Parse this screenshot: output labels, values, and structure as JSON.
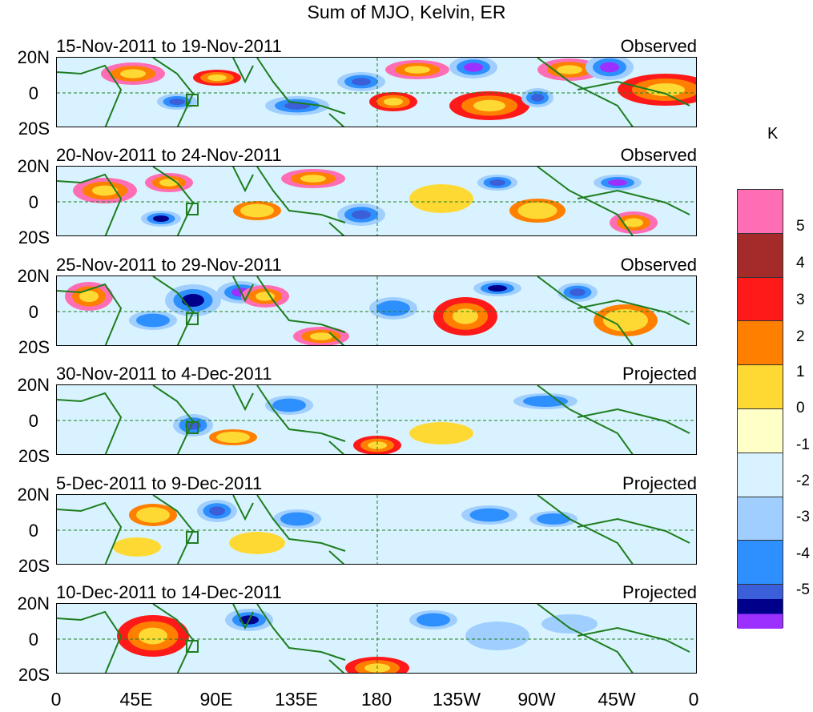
{
  "title": "Sum of MJO, Kelvin, ER",
  "lat_labels": [
    "20N",
    "0",
    "20S"
  ],
  "lon_labels": [
    "0",
    "45E",
    "90E",
    "135E",
    "180",
    "135W",
    "90W",
    "45W",
    "0"
  ],
  "panels": [
    {
      "date": "15-Nov-2011 to 19-Nov-2011",
      "status": "Observed"
    },
    {
      "date": "20-Nov-2011 to 24-Nov-2011",
      "status": "Observed"
    },
    {
      "date": "25-Nov-2011 to 29-Nov-2011",
      "status": "Observed"
    },
    {
      "date": "30-Nov-2011 to 4-Dec-2011",
      "status": "Projected"
    },
    {
      "date": "5-Dec-2011 to 9-Dec-2011",
      "status": "Projected"
    },
    {
      "date": "10-Dec-2011 to 14-Dec-2011",
      "status": "Projected"
    }
  ],
  "legend": {
    "unit": "K",
    "labels": [
      "5",
      "4",
      "3",
      "2",
      "1",
      "0",
      "-1",
      "-2",
      "-3",
      "-4",
      "-5"
    ],
    "colors": [
      "#ff6eb4",
      "#a52a2a",
      "#ff1a1a",
      "#ff7f00",
      "#ffd933",
      "#ffffc8",
      "#d8f3ff",
      "#a0cfff",
      "#2e8fff",
      "#3a5fd9",
      "#00008b",
      "#9b30ff"
    ]
  },
  "colors": {
    "coast": "#1e7d1e",
    "grid": "#1e7d1e",
    "frame": "#000000"
  }
}
